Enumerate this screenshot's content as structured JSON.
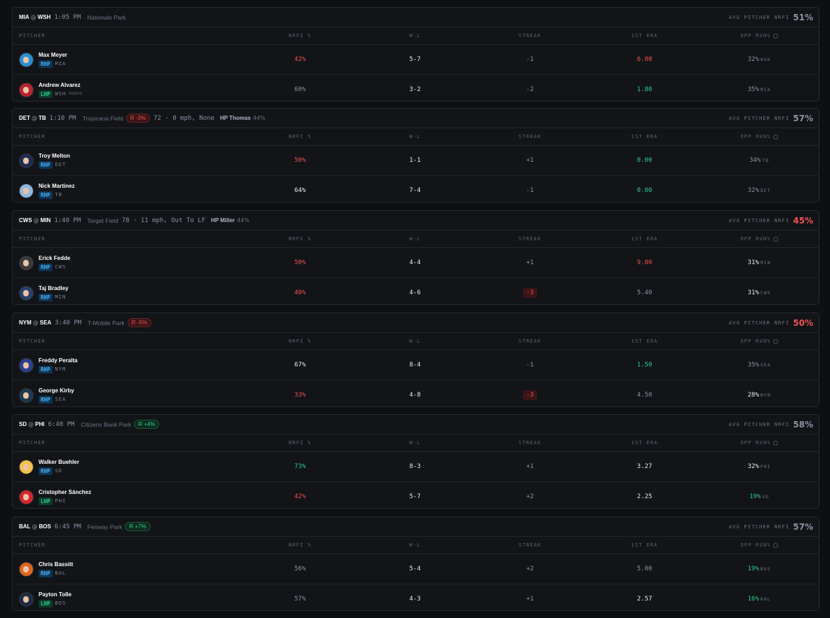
{
  "columns": [
    "PITCHER",
    "NRFI %",
    "W-L",
    "STREAK",
    "1ST ERA",
    "OPP RUN%"
  ],
  "at_sign": "@",
  "avg_label": "AVG PITCHER NRFI",
  "games": [
    {
      "away": "MIA",
      "home": "WSH",
      "time": "1:05 PM",
      "park": "Nationals Park",
      "avg": "51%",
      "avg_tone": "muted",
      "pitchers": [
        {
          "name": "Max Meyer",
          "hand": "RHP",
          "hand_tone": "blue",
          "team": "MIA",
          "avatar_color": "#2a8fd4",
          "nrfi": "42%",
          "nrfi_tone": "red",
          "wl": "5-7",
          "streak": "-1",
          "streak_tone": "muted",
          "era": "6.00",
          "era_tone": "red",
          "opp": "32%",
          "opp_tone": "muted",
          "opp_team": "WSH"
        },
        {
          "name": "Andrew Alvarez",
          "hand": "LHP",
          "hand_tone": "green",
          "team": "WSH",
          "note": "PROBYR",
          "avatar_color": "#b8232f",
          "nrfi": "60%",
          "nrfi_tone": "muted",
          "wl": "3-2",
          "streak": "-2",
          "streak_tone": "muted",
          "era": "1.80",
          "era_tone": "green",
          "opp": "35%",
          "opp_tone": "muted",
          "opp_team": "MIA"
        }
      ]
    },
    {
      "away": "DET",
      "home": "TB",
      "time": "1:10 PM",
      "park": "Tropicana Field",
      "ump": "R -3%",
      "ump_tone": "red",
      "weather": "72 · 0 mph, None",
      "hp": "HP Thomas",
      "hp_pct": "44%",
      "avg": "57%",
      "avg_tone": "muted",
      "pitchers": [
        {
          "name": "Troy Melton",
          "hand": "RHP",
          "hand_tone": "blue",
          "team": "DET",
          "avatar_color": "#1d2c4f",
          "nrfi": "50%",
          "nrfi_tone": "red",
          "wl": "1-1",
          "streak": "+1",
          "streak_tone": "muted",
          "era": "0.00",
          "era_tone": "green",
          "opp": "34%",
          "opp_tone": "muted",
          "opp_team": "TB"
        },
        {
          "name": "Nick Martinez",
          "hand": "RHP",
          "hand_tone": "blue",
          "team": "TB",
          "avatar_color": "#8fb8de",
          "nrfi": "64%",
          "nrfi_tone": "white",
          "wl": "7-4",
          "streak": "-1",
          "streak_tone": "muted",
          "era": "0.00",
          "era_tone": "green",
          "opp": "32%",
          "opp_tone": "muted",
          "opp_team": "DET"
        }
      ]
    },
    {
      "away": "CWS",
      "home": "MIN",
      "time": "1:40 PM",
      "park": "Target Field",
      "weather": "78 · 11 mph, Out To LF",
      "hp": "HP Miller",
      "hp_pct": "44%",
      "avg": "45%",
      "avg_tone": "red",
      "pitchers": [
        {
          "name": "Erick Fedde",
          "hand": "RHP",
          "hand_tone": "blue",
          "team": "CWS",
          "avatar_color": "#3a3a3a",
          "nrfi": "50%",
          "nrfi_tone": "red",
          "wl": "4-4",
          "streak": "+1",
          "streak_tone": "muted",
          "era": "9.00",
          "era_tone": "red",
          "opp": "31%",
          "opp_tone": "white",
          "opp_team": "MIN"
        },
        {
          "name": "Taj Bradley",
          "hand": "RHP",
          "hand_tone": "blue",
          "team": "MIN",
          "avatar_color": "#27406b",
          "nrfi": "40%",
          "nrfi_tone": "red",
          "wl": "4-6",
          "streak": "-3",
          "streak_tone": "badge",
          "era": "5.40",
          "era_tone": "muted",
          "opp": "31%",
          "opp_tone": "white",
          "opp_team": "CWS"
        }
      ]
    },
    {
      "away": "NYM",
      "home": "SEA",
      "time": "3:40 PM",
      "park": "T-Mobile Park",
      "ump": "R -5%",
      "ump_tone": "red",
      "avg": "50%",
      "avg_tone": "red",
      "pitchers": [
        {
          "name": "Freddy Peralta",
          "hand": "RHP",
          "hand_tone": "blue",
          "team": "NYM",
          "avatar_color": "#2a3f8f",
          "nrfi": "67%",
          "nrfi_tone": "white",
          "wl": "8-4",
          "streak": "-1",
          "streak_tone": "muted",
          "era": "1.50",
          "era_tone": "green",
          "opp": "35%",
          "opp_tone": "muted",
          "opp_team": "SEA"
        },
        {
          "name": "George Kirby",
          "hand": "RHP",
          "hand_tone": "blue",
          "team": "SEA",
          "avatar_color": "#1b3a4f",
          "nrfi": "33%",
          "nrfi_tone": "red",
          "wl": "4-8",
          "streak": "-3",
          "streak_tone": "badge",
          "era": "4.50",
          "era_tone": "muted",
          "opp": "28%",
          "opp_tone": "white",
          "opp_team": "NYM"
        }
      ]
    },
    {
      "away": "SD",
      "home": "PHI",
      "time": "6:40 PM",
      "park": "Citizens Bank Park",
      "ump": "R +4%",
      "ump_tone": "green",
      "avg": "58%",
      "avg_tone": "muted",
      "pitchers": [
        {
          "name": "Walker Buehler",
          "hand": "RHP",
          "hand_tone": "blue",
          "team": "SD",
          "avatar_color": "#f2c14e",
          "nrfi": "73%",
          "nrfi_tone": "green",
          "wl": "8-3",
          "streak": "+1",
          "streak_tone": "muted",
          "era": "3.27",
          "era_tone": "white",
          "opp": "32%",
          "opp_tone": "white",
          "opp_team": "PHI"
        },
        {
          "name": "Cristopher Sánchez",
          "hand": "LHP",
          "hand_tone": "green",
          "team": "PHI",
          "avatar_color": "#d4262e",
          "nrfi": "42%",
          "nrfi_tone": "red",
          "wl": "5-7",
          "streak": "+2",
          "streak_tone": "muted",
          "era": "2.25",
          "era_tone": "white",
          "opp": "19%",
          "opp_tone": "green",
          "opp_team": "SD"
        }
      ]
    },
    {
      "away": "BAL",
      "home": "BOS",
      "time": "6:45 PM",
      "park": "Fenway Park",
      "ump": "R +7%",
      "ump_tone": "green",
      "avg": "57%",
      "avg_tone": "muted",
      "pitchers": [
        {
          "name": "Chris Bassitt",
          "hand": "RHP",
          "hand_tone": "blue",
          "team": "BAL",
          "avatar_color": "#e0641f",
          "nrfi": "56%",
          "nrfi_tone": "muted",
          "wl": "5-4",
          "streak": "+2",
          "streak_tone": "muted",
          "era": "5.00",
          "era_tone": "muted",
          "opp": "19%",
          "opp_tone": "green",
          "opp_team": "BOS"
        },
        {
          "name": "Payton Tolle",
          "hand": "LHP",
          "hand_tone": "green",
          "team": "BOS",
          "avatar_color": "#1f2a44",
          "nrfi": "57%",
          "nrfi_tone": "muted",
          "wl": "4-3",
          "streak": "+1",
          "streak_tone": "muted",
          "era": "2.57",
          "era_tone": "white",
          "opp": "16%",
          "opp_tone": "green",
          "opp_team": "BAL"
        }
      ]
    }
  ]
}
